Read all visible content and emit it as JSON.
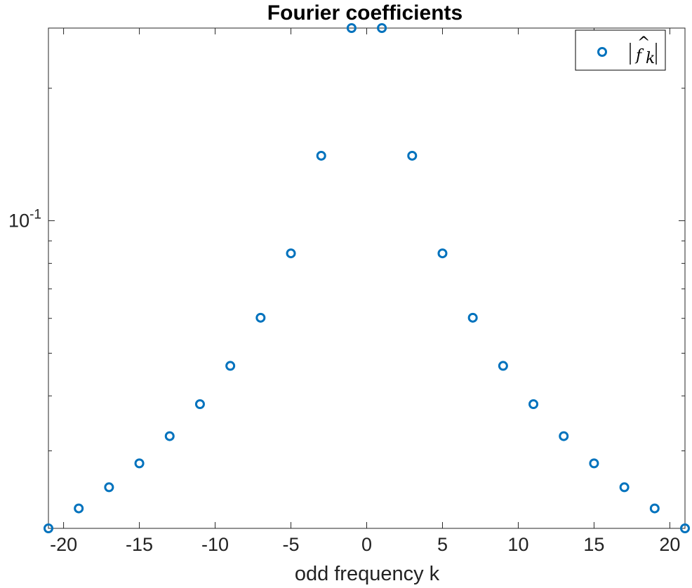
{
  "chart_data": {
    "type": "scatter",
    "title": "Fourier coefficients",
    "xlabel": "odd frequency k",
    "ylabel": "",
    "xlim": [
      -21,
      21
    ],
    "ylim": [
      0.02,
      0.274
    ],
    "yscale": "log",
    "x_ticks": [
      -20,
      -15,
      -10,
      -5,
      0,
      5,
      10,
      15,
      20
    ],
    "y_major_ticks": [
      0.1
    ],
    "y_minor_ticks": [
      0.03,
      0.04,
      0.05,
      0.06,
      0.07,
      0.08,
      0.09,
      0.2
    ],
    "y_tick_label": "10",
    "y_tick_exponent": "-1",
    "grid": false,
    "legend_position": "top-right",
    "marker": "circle",
    "series": [
      {
        "name": "|f̂_k|",
        "color": "#0072BD",
        "x": [
          -21,
          -19,
          -17,
          -15,
          -13,
          -11,
          -9,
          -7,
          -5,
          -3,
          -1,
          1,
          3,
          5,
          7,
          9,
          11,
          13,
          15,
          17,
          19,
          21
        ],
        "y": [
          0.02,
          0.0222,
          0.0248,
          0.0281,
          0.0324,
          0.0383,
          0.0468,
          0.0602,
          0.0843,
          0.1405,
          0.274,
          0.274,
          0.1405,
          0.0843,
          0.0602,
          0.0468,
          0.0383,
          0.0324,
          0.0281,
          0.0248,
          0.0222,
          0.02
        ]
      }
    ]
  }
}
